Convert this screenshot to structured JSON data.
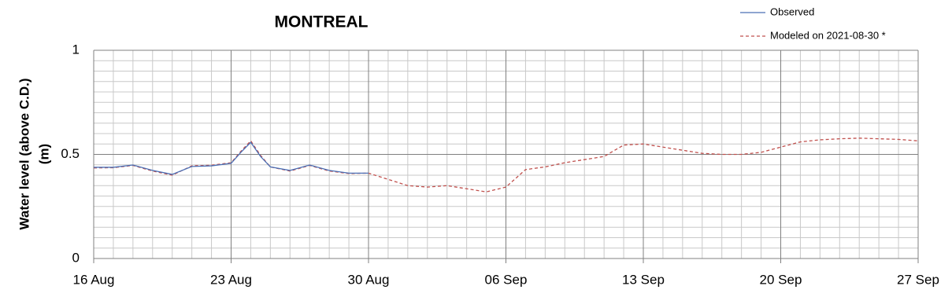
{
  "chart_data": {
    "type": "line",
    "title": "MONTREAL",
    "ylabel": [
      "Water level (above C.D.)",
      "(m)"
    ],
    "xlim": [
      0,
      42
    ],
    "xticks": [
      {
        "value": 0,
        "label": "16 Aug"
      },
      {
        "value": 7,
        "label": "23 Aug"
      },
      {
        "value": 14,
        "label": "30 Aug"
      },
      {
        "value": 21,
        "label": "06 Sep"
      },
      {
        "value": 28,
        "label": "13 Sep"
      },
      {
        "value": 35,
        "label": "20 Sep"
      },
      {
        "value": 42,
        "label": "27 Sep"
      }
    ],
    "ylim": [
      0,
      1
    ],
    "yticks": [
      0,
      0.5,
      1
    ],
    "grid": true,
    "minor_grid_step": {
      "x": 1,
      "y": 0.05
    },
    "legend": "top-right",
    "series": [
      {
        "name": "Observed",
        "color": "#4a6fb5",
        "dash": false,
        "x": [
          0,
          1,
          2,
          3,
          4,
          5,
          6,
          7,
          7.5,
          8,
          8.5,
          9,
          10,
          11,
          12,
          13,
          14
        ],
        "values": [
          0.438,
          0.438,
          0.449,
          0.423,
          0.404,
          0.442,
          0.445,
          0.457,
          0.51,
          0.558,
          0.49,
          0.44,
          0.423,
          0.449,
          0.423,
          0.41,
          0.41
        ]
      },
      {
        "name": "Modeled on 2021-08-30 *",
        "color": "#c0504d",
        "dash": true,
        "x": [
          0,
          1,
          2,
          3,
          4,
          5,
          6,
          7,
          7.5,
          8,
          8.5,
          9,
          10,
          11,
          12,
          13,
          14,
          15,
          16,
          17,
          18,
          19,
          20,
          21,
          22,
          23,
          24,
          25,
          26,
          27,
          28,
          29,
          30,
          31,
          32,
          33,
          34,
          35,
          36,
          37,
          38,
          39,
          40,
          41,
          42
        ],
        "values": [
          0.435,
          0.436,
          0.447,
          0.42,
          0.4,
          0.445,
          0.448,
          0.46,
          0.515,
          0.565,
          0.495,
          0.44,
          0.42,
          0.447,
          0.42,
          0.408,
          0.41,
          0.38,
          0.35,
          0.343,
          0.35,
          0.335,
          0.32,
          0.343,
          0.427,
          0.44,
          0.46,
          0.475,
          0.49,
          0.545,
          0.55,
          0.535,
          0.52,
          0.505,
          0.5,
          0.5,
          0.51,
          0.535,
          0.56,
          0.57,
          0.575,
          0.578,
          0.575,
          0.572,
          0.565
        ]
      }
    ]
  }
}
